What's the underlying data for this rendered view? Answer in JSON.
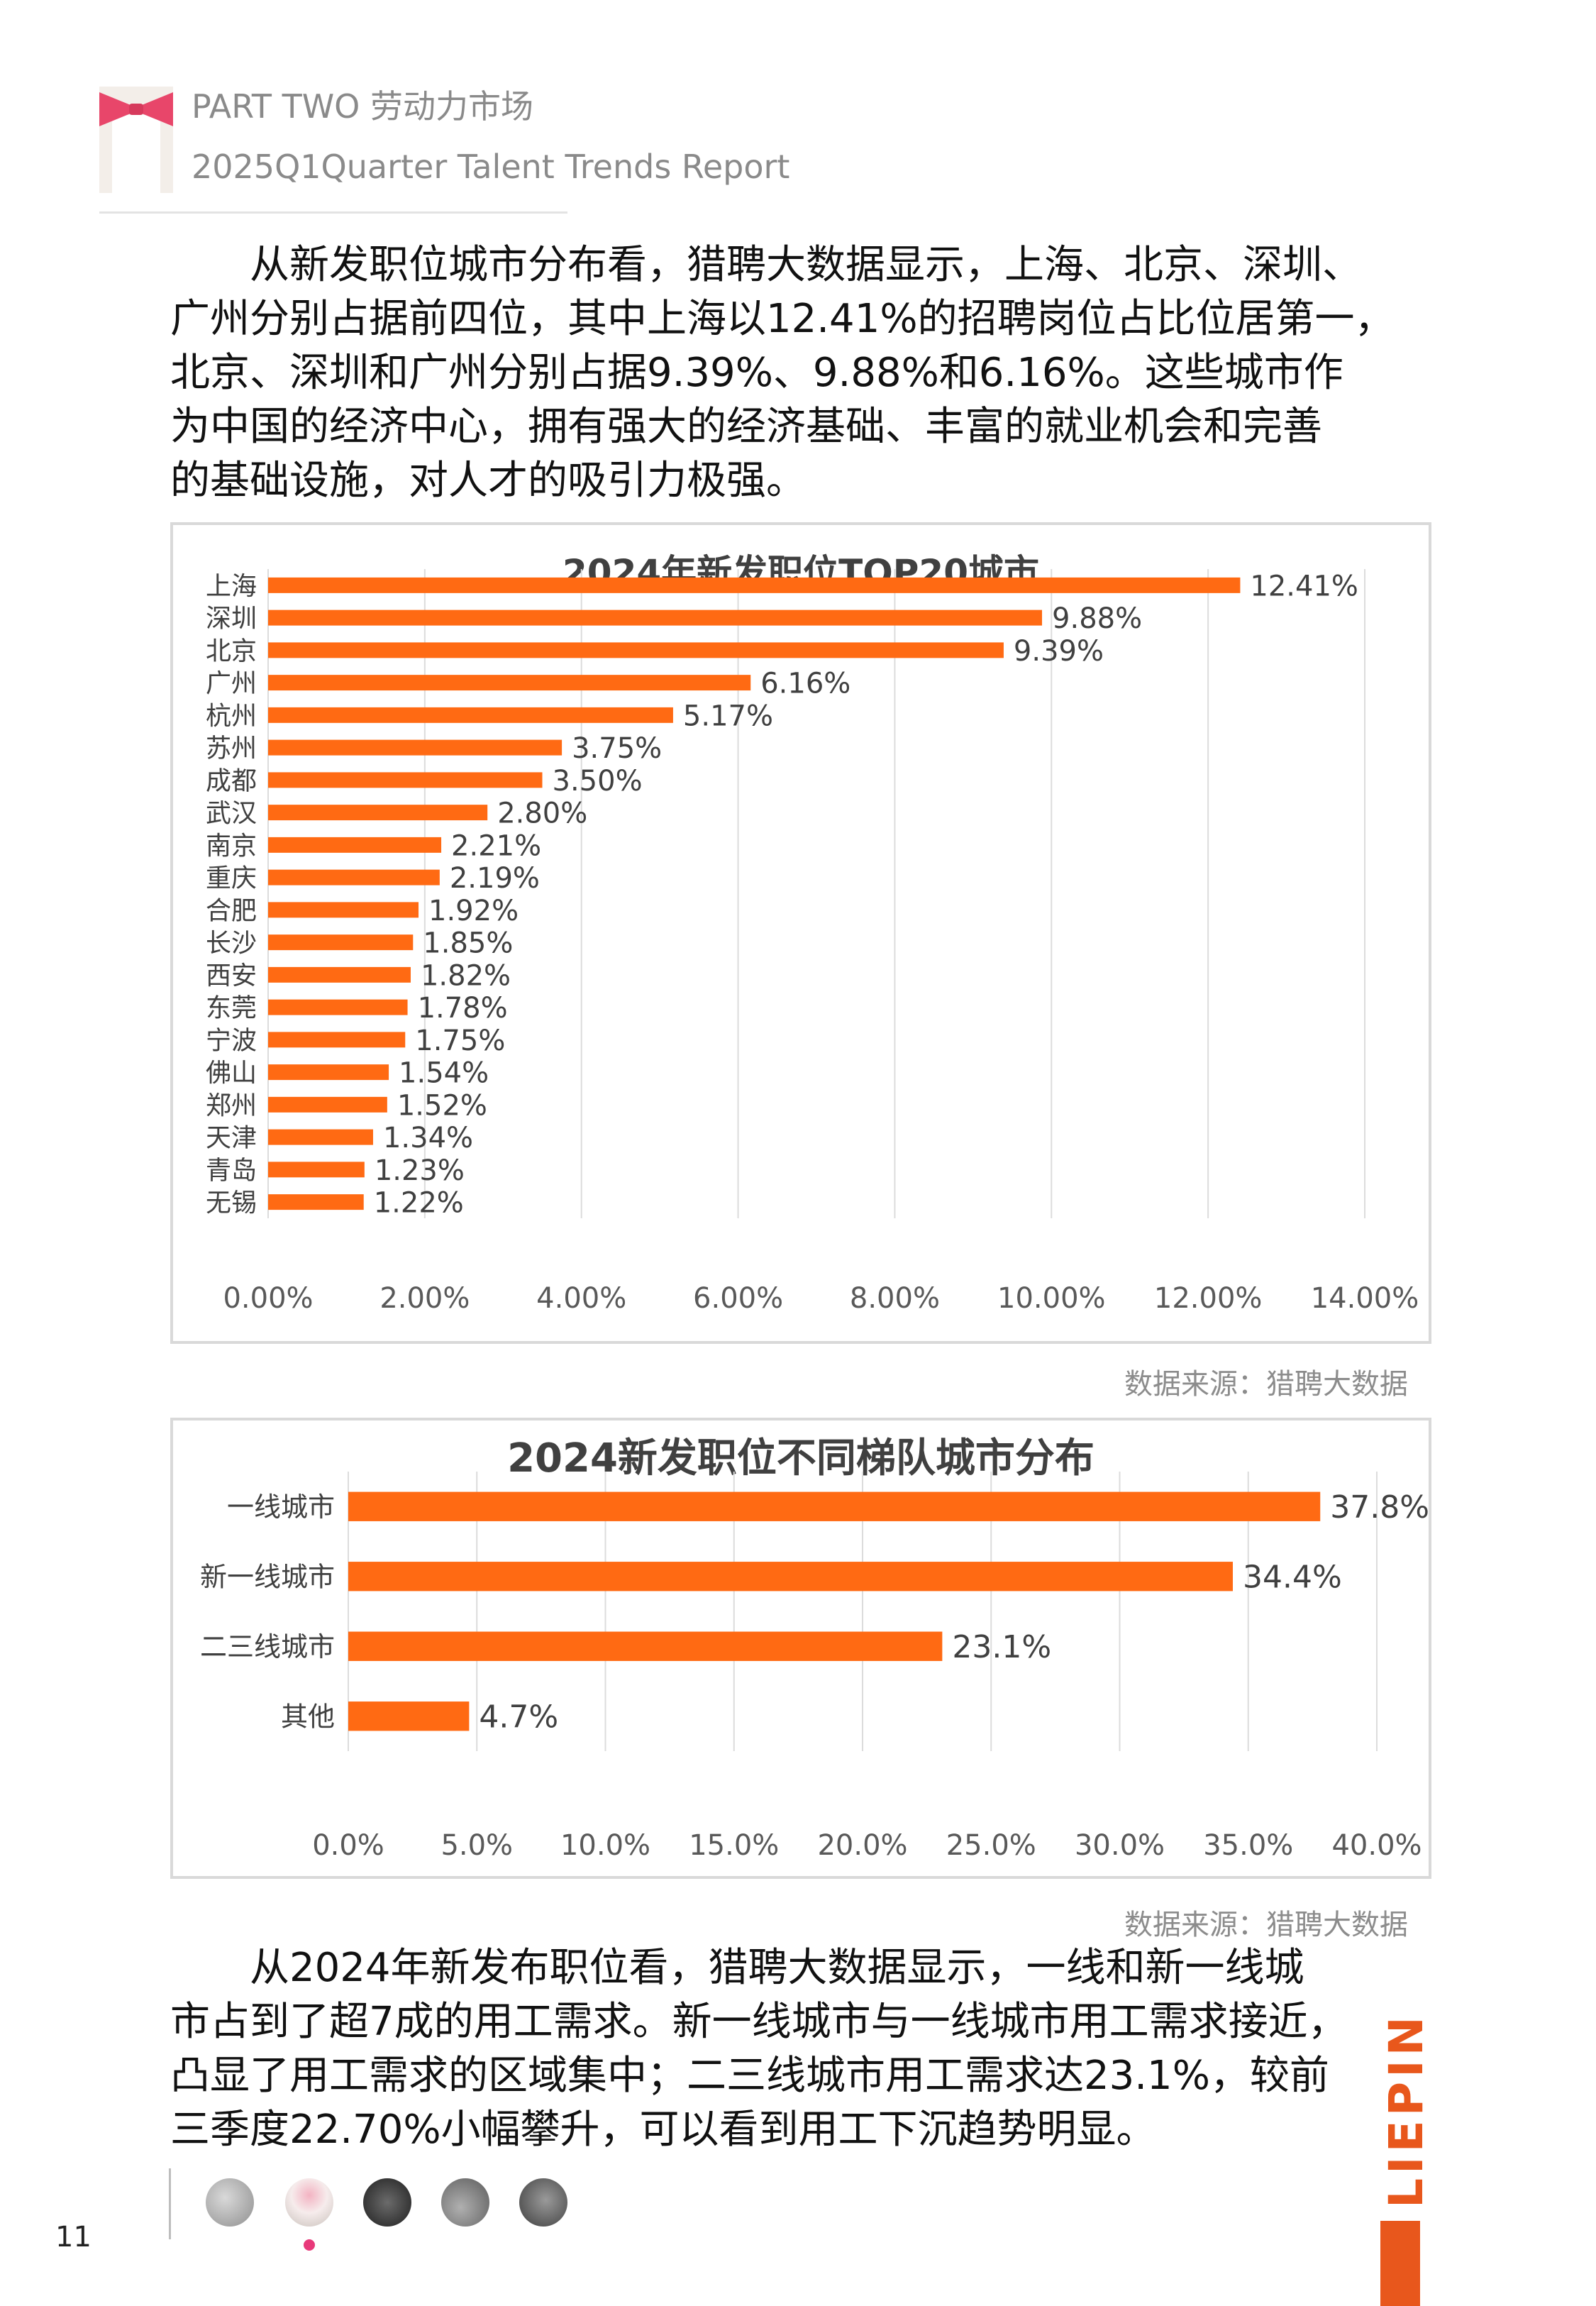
{
  "header": {
    "section": "PART TWO 劳动力市场",
    "report": "2025Q1Quarter Talent Trends Report"
  },
  "intro_paragraph": {
    "lines": [
      "从新发职位城市分布看，猎聘大数据显示，上海、北京、深圳、",
      "广州分别占据前四位，其中上海以12.41%的招聘岗位占比位居第一，",
      "北京、深圳和广州分别占据9.39%、9.88%和6.16%。这些城市作",
      "为中国的经济中心，拥有强大的经济基础、丰富的就业机会和完善",
      "的基础设施，对人才的吸引力极强。"
    ]
  },
  "chart_data": [
    {
      "type": "bar",
      "orientation": "horizontal",
      "title": "2024年新发职位TOP20城市",
      "categories": [
        "上海",
        "深圳",
        "北京",
        "广州",
        "杭州",
        "苏州",
        "成都",
        "武汉",
        "南京",
        "重庆",
        "合肥",
        "长沙",
        "西安",
        "东莞",
        "宁波",
        "佛山",
        "郑州",
        "天津",
        "青岛",
        "无锡"
      ],
      "values": [
        12.41,
        9.88,
        9.39,
        6.16,
        5.17,
        3.75,
        3.5,
        2.8,
        2.21,
        2.19,
        1.92,
        1.85,
        1.82,
        1.78,
        1.75,
        1.54,
        1.52,
        1.34,
        1.23,
        1.22
      ],
      "value_labels": [
        "12.41%",
        "9.88%",
        "9.39%",
        "6.16%",
        "5.17%",
        "3.75%",
        "3.50%",
        "2.80%",
        "2.21%",
        "2.19%",
        "1.92%",
        "1.85%",
        "1.82%",
        "1.78%",
        "1.75%",
        "1.54%",
        "1.52%",
        "1.34%",
        "1.23%",
        "1.22%"
      ],
      "xlim": [
        0,
        14
      ],
      "xticks": [
        "0.00%",
        "2.00%",
        "4.00%",
        "6.00%",
        "8.00%",
        "10.00%",
        "12.00%",
        "14.00%"
      ],
      "gridlines": true,
      "bar_color": "#ff6a13"
    },
    {
      "type": "bar",
      "orientation": "horizontal",
      "title": "2024新发职位不同梯队城市分布",
      "categories": [
        "一线城市",
        "新一线城市",
        "二三线城市",
        "其他"
      ],
      "values": [
        37.8,
        34.4,
        23.1,
        4.7
      ],
      "value_labels": [
        "37.8%",
        "34.4%",
        "23.1%",
        "4.7%"
      ],
      "xlim": [
        0,
        40
      ],
      "xticks": [
        "0.0%",
        "5.0%",
        "10.0%",
        "15.0%",
        "20.0%",
        "25.0%",
        "30.0%",
        "35.0%",
        "40.0%"
      ],
      "gridlines": true,
      "bar_color": "#ff6a13"
    }
  ],
  "sources": {
    "chart1": "数据来源：猎聘大数据",
    "chart2": "数据来源：猎聘大数据"
  },
  "outro_paragraph": {
    "lines": [
      "从2024年新发布职位看，猎聘大数据显示，一线和新一线城",
      "市占到了超7成的用工需求。新一线城市与一线城市用工需求接近，",
      "凸显了用工需求的区域集中；二三线城市用工需求达23.1%，较前",
      "三季度22.70%小幅攀升，可以看到用工下沉趋势明显。"
    ]
  },
  "footer": {
    "page_number": "11",
    "brand": "LIEPIN",
    "nav_icons": [
      "nav-thumb-1-icon",
      "nav-thumb-2-icon",
      "nav-thumb-3-icon",
      "nav-thumb-4-icon",
      "nav-thumb-5-icon"
    ]
  },
  "colors": {
    "accent": "#ff6a13",
    "brand": "#e8571c",
    "muted_text": "#8a8a8a",
    "frame": "#d9d9d9"
  }
}
